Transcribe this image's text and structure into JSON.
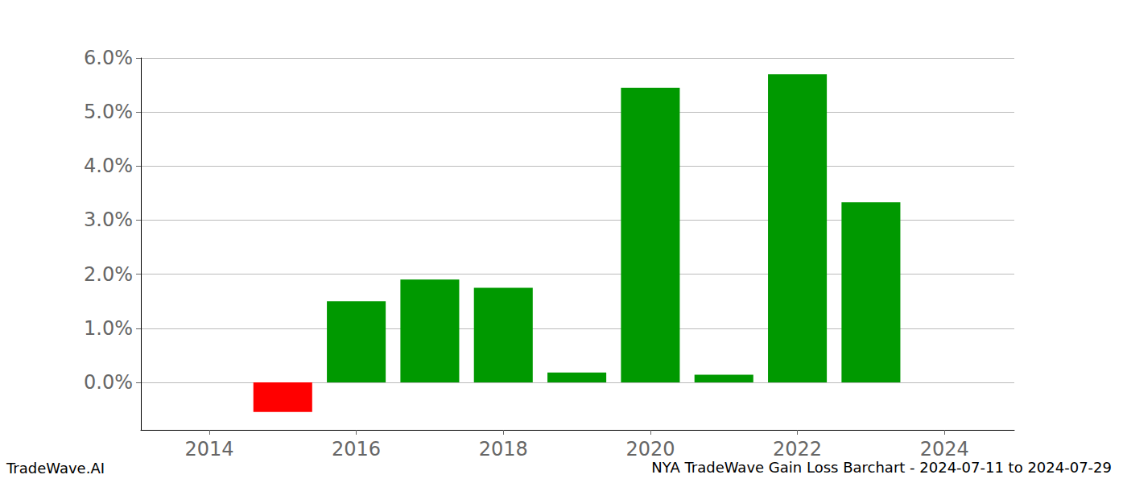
{
  "chart_data": {
    "type": "bar",
    "title": "NYA TradeWave Gain Loss Barchart - 2024-07-11 to 2024-07-29",
    "annotations": [
      "TradeWave.AI"
    ],
    "x": [
      2015,
      2016,
      2017,
      2018,
      2019,
      2020,
      2021,
      2022,
      2023
    ],
    "values": [
      -0.55,
      1.5,
      1.9,
      1.75,
      0.18,
      5.45,
      0.14,
      5.7,
      3.33
    ],
    "colors": [
      "#ff0000",
      "#009900",
      "#009900",
      "#009900",
      "#009900",
      "#009900",
      "#009900",
      "#009900",
      "#009900"
    ],
    "xlim": [
      2013.07,
      2024.95
    ],
    "xticks": [
      2014,
      2016,
      2018,
      2020,
      2022,
      2024
    ],
    "ylim": [
      -0.88,
      6.0
    ],
    "yticks": [
      {
        "value": 0,
        "label": "0.0%"
      },
      {
        "value": 1,
        "label": "1.0%"
      },
      {
        "value": 2,
        "label": "2.0%"
      },
      {
        "value": 3,
        "label": "3.0%"
      },
      {
        "value": 4,
        "label": "4.0%"
      },
      {
        "value": 5,
        "label": "5.0%"
      },
      {
        "value": 6,
        "label": "6.0%"
      }
    ],
    "grid": true
  }
}
